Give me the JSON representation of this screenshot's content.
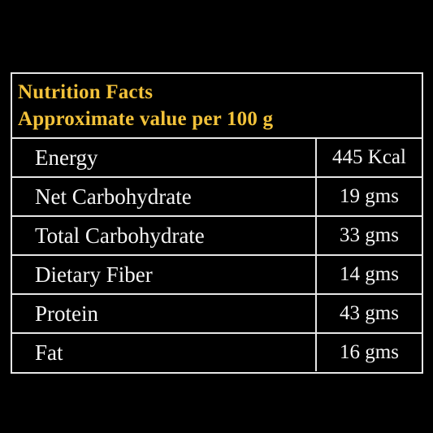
{
  "header": {
    "title": "Nutrition Facts",
    "subtitle": "Approximate value per 100 g",
    "accent_color": "#f2c23a"
  },
  "rows": [
    {
      "nutrient": "Energy",
      "amount": "445 Kcal"
    },
    {
      "nutrient": "Net Carbohydrate",
      "amount": "19 gms"
    },
    {
      "nutrient": "Total Carbohydrate",
      "amount": "33 gms"
    },
    {
      "nutrient": "Dietary Fiber",
      "amount": "14 gms"
    },
    {
      "nutrient": "Protein",
      "amount": "43 gms"
    },
    {
      "nutrient": "Fat",
      "amount": "16 gms"
    }
  ]
}
